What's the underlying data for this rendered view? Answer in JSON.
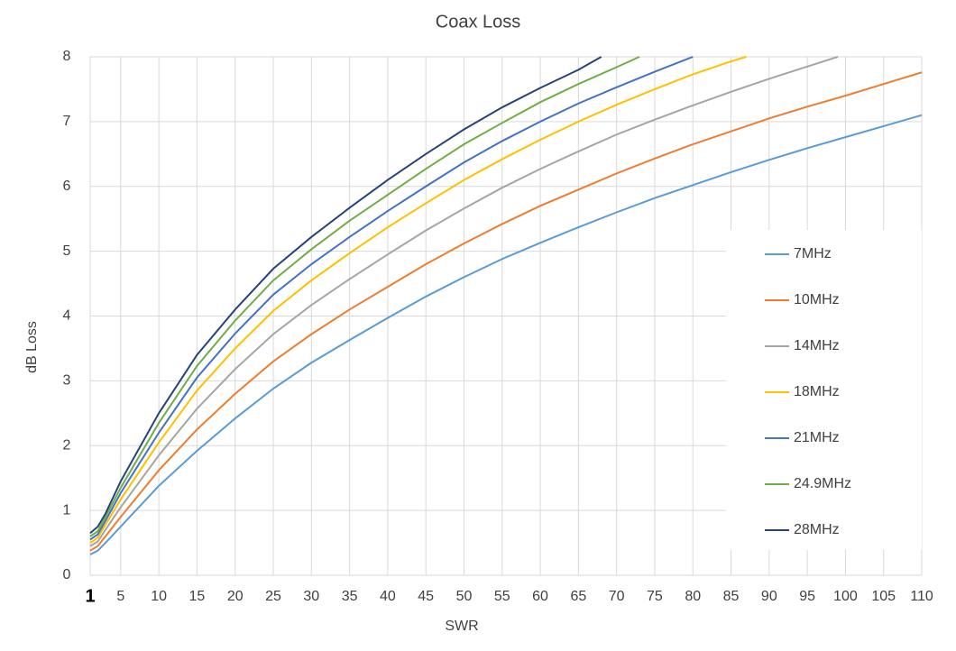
{
  "chart_data": {
    "type": "line",
    "title": "Coax Loss",
    "xlabel": "SWR",
    "ylabel": "dB Loss",
    "xlim": [
      1,
      110
    ],
    "xticks": [
      1,
      5,
      10,
      15,
      20,
      25,
      30,
      35,
      40,
      45,
      50,
      55,
      60,
      65,
      70,
      75,
      80,
      85,
      90,
      95,
      100,
      105,
      110
    ],
    "ylim": [
      0,
      8
    ],
    "yticks": [
      0,
      1,
      2,
      3,
      4,
      5,
      6,
      7,
      8
    ],
    "grid": true,
    "legend": "right",
    "series": [
      {
        "name": "7MHz",
        "color": "#5b9bd5",
        "x": [
          1,
          2,
          3,
          5,
          10,
          15,
          20,
          25,
          30,
          35,
          40,
          45,
          50,
          55,
          60,
          65,
          70,
          75,
          80,
          85,
          90,
          95,
          100,
          105,
          110
        ],
        "values": [
          0.32,
          0.38,
          0.5,
          0.75,
          1.38,
          1.92,
          2.42,
          2.88,
          3.28,
          3.63,
          3.97,
          4.3,
          4.6,
          4.88,
          5.13,
          5.37,
          5.6,
          5.82,
          6.02,
          6.22,
          6.41,
          6.59,
          6.76,
          6.93,
          7.1
        ]
      },
      {
        "name": "10MHz",
        "color": "#ed7d31",
        "x": [
          1,
          2,
          3,
          5,
          10,
          15,
          20,
          25,
          30,
          35,
          40,
          45,
          50,
          55,
          60,
          65,
          70,
          75,
          80,
          85,
          90,
          95,
          100,
          105,
          110
        ],
        "values": [
          0.38,
          0.45,
          0.6,
          0.9,
          1.62,
          2.25,
          2.8,
          3.3,
          3.72,
          4.1,
          4.45,
          4.8,
          5.12,
          5.42,
          5.7,
          5.95,
          6.2,
          6.43,
          6.65,
          6.85,
          7.05,
          7.23,
          7.4,
          7.58,
          7.76
        ]
      },
      {
        "name": "14MHz",
        "color": "#a5a5a5",
        "x": [
          1,
          2,
          3,
          5,
          10,
          15,
          20,
          25,
          30,
          35,
          40,
          45,
          50,
          55,
          60,
          65,
          70,
          75,
          80,
          85,
          90,
          95,
          99
        ],
        "values": [
          0.45,
          0.52,
          0.7,
          1.05,
          1.85,
          2.57,
          3.18,
          3.72,
          4.17,
          4.57,
          4.95,
          5.32,
          5.66,
          5.98,
          6.27,
          6.54,
          6.8,
          7.03,
          7.25,
          7.46,
          7.66,
          7.85,
          8
        ]
      },
      {
        "name": "18MHz",
        "color": "#ffc000",
        "x": [
          1,
          2,
          3,
          5,
          10,
          15,
          20,
          25,
          30,
          35,
          40,
          45,
          50,
          55,
          60,
          65,
          70,
          75,
          80,
          85,
          87
        ],
        "values": [
          0.5,
          0.58,
          0.78,
          1.17,
          2.05,
          2.85,
          3.5,
          4.08,
          4.55,
          4.97,
          5.37,
          5.74,
          6.1,
          6.42,
          6.72,
          7,
          7.26,
          7.5,
          7.73,
          7.93,
          8
        ]
      },
      {
        "name": "21MHz",
        "color": "#4472c4",
        "x": [
          1,
          2,
          3,
          5,
          10,
          15,
          20,
          25,
          30,
          35,
          40,
          45,
          50,
          55,
          60,
          65,
          70,
          75,
          80
        ],
        "values": [
          0.55,
          0.63,
          0.84,
          1.27,
          2.2,
          3.05,
          3.73,
          4.33,
          4.8,
          5.22,
          5.62,
          6,
          6.37,
          6.7,
          7,
          7.28,
          7.53,
          7.77,
          8
        ]
      },
      {
        "name": "24.9MHz",
        "color": "#70ad47",
        "x": [
          1,
          2,
          3,
          5,
          10,
          15,
          20,
          25,
          30,
          35,
          40,
          45,
          50,
          55,
          60,
          65,
          70,
          73
        ],
        "values": [
          0.6,
          0.68,
          0.9,
          1.35,
          2.35,
          3.23,
          3.93,
          4.55,
          5.03,
          5.47,
          5.87,
          6.27,
          6.65,
          6.98,
          7.3,
          7.58,
          7.84,
          8
        ]
      },
      {
        "name": "28MHz",
        "color": "#264478",
        "x": [
          1,
          2,
          3,
          5,
          10,
          15,
          20,
          25,
          30,
          35,
          40,
          45,
          50,
          55,
          60,
          65,
          68
        ],
        "values": [
          0.65,
          0.75,
          0.95,
          1.45,
          2.5,
          3.4,
          4.1,
          4.73,
          5.22,
          5.67,
          6.1,
          6.5,
          6.88,
          7.22,
          7.52,
          7.8,
          8
        ]
      }
    ]
  }
}
